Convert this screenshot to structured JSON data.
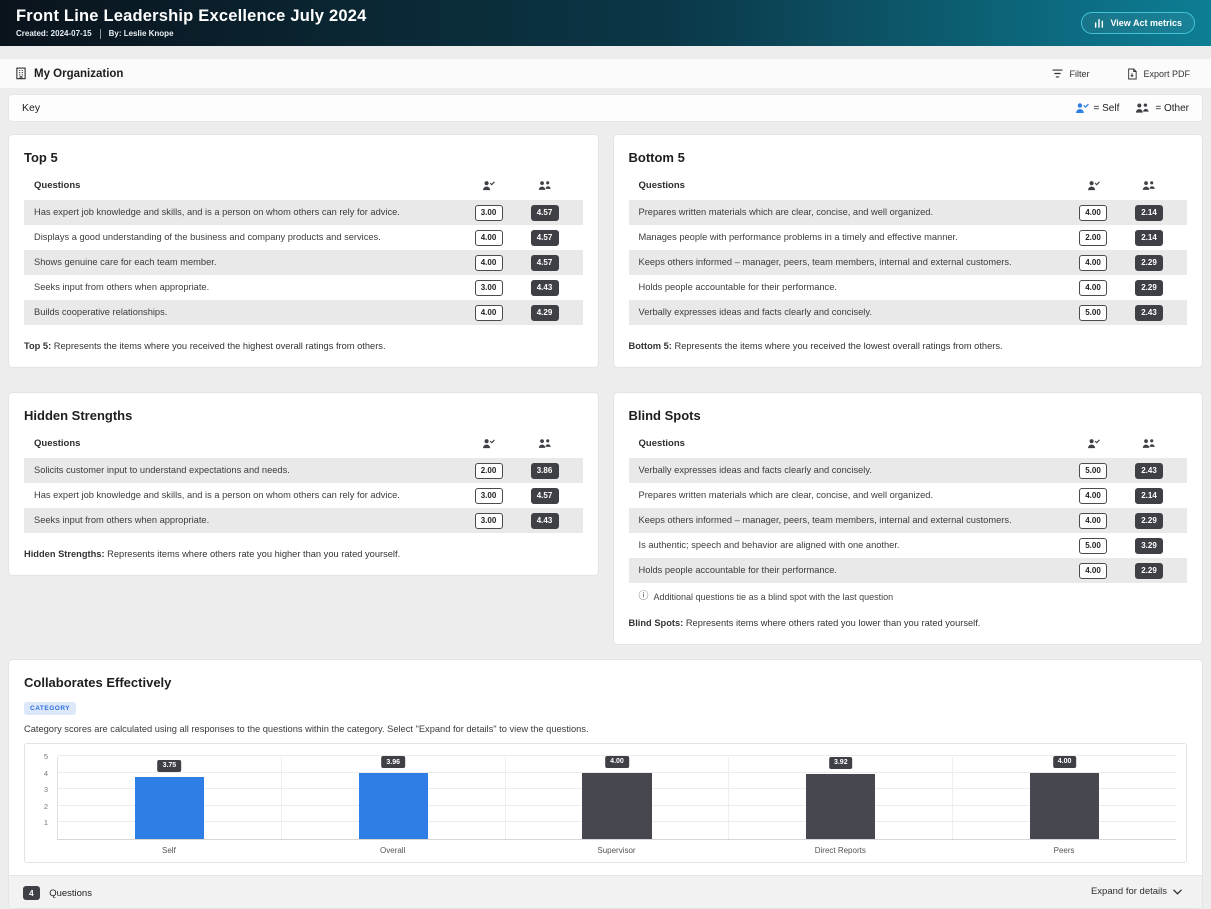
{
  "header": {
    "title": "Front Line Leadership Excellence July 2024",
    "created": "Created: 2024-07-15",
    "by": "By: Leslie Knope",
    "action_button": "View Act metrics"
  },
  "toolbar": {
    "org_label": "My Organization",
    "filter_label": "Filter",
    "export_label": "Export PDF"
  },
  "key": {
    "label": "Key",
    "self_label": "= Self",
    "other_label": "= Other"
  },
  "cards": {
    "top5": {
      "title": "Top 5",
      "questions_header": "Questions",
      "rows": [
        {
          "q": "Has expert job knowledge and skills, and is a person on whom others can rely for advice.",
          "self": "3.00",
          "other": "4.57"
        },
        {
          "q": "Displays a good understanding of the business and company products and services.",
          "self": "4.00",
          "other": "4.57"
        },
        {
          "q": "Shows genuine care for each team member.",
          "self": "4.00",
          "other": "4.57"
        },
        {
          "q": "Seeks input from others when appropriate.",
          "self": "3.00",
          "other": "4.43"
        },
        {
          "q": "Builds cooperative relationships.",
          "self": "4.00",
          "other": "4.29"
        }
      ],
      "footer_bold": "Top 5:",
      "footer_text": " Represents the items where you received the highest overall ratings from others."
    },
    "bottom5": {
      "title": "Bottom 5",
      "questions_header": "Questions",
      "rows": [
        {
          "q": "Prepares written materials which are clear, concise, and well organized.",
          "self": "4.00",
          "other": "2.14"
        },
        {
          "q": "Manages people with performance problems in a timely and effective manner.",
          "self": "2.00",
          "other": "2.14"
        },
        {
          "q": "Keeps others informed – manager, peers, team members, internal and external customers.",
          "self": "4.00",
          "other": "2.29"
        },
        {
          "q": "Holds people accountable for their performance.",
          "self": "4.00",
          "other": "2.29"
        },
        {
          "q": "Verbally expresses ideas and facts clearly and concisely.",
          "self": "5.00",
          "other": "2.43"
        }
      ],
      "footer_bold": "Bottom 5:",
      "footer_text": " Represents the items where you received the lowest overall ratings from others."
    },
    "hidden_strengths": {
      "title": "Hidden Strengths",
      "questions_header": "Questions",
      "rows": [
        {
          "q": "Solicits customer input to understand expectations and needs.",
          "self": "2.00",
          "other": "3.86"
        },
        {
          "q": "Has expert job knowledge and skills, and is a person on whom others can rely for advice.",
          "self": "3.00",
          "other": "4.57"
        },
        {
          "q": "Seeks input from others when appropriate.",
          "self": "3.00",
          "other": "4.43"
        }
      ],
      "footer_bold": "Hidden Strengths:",
      "footer_text": " Represents items where others rate you higher than you rated yourself."
    },
    "blind_spots": {
      "title": "Blind Spots",
      "questions_header": "Questions",
      "rows": [
        {
          "q": "Verbally expresses ideas and facts clearly and concisely.",
          "self": "5.00",
          "other": "2.43"
        },
        {
          "q": "Prepares written materials which are clear, concise, and well organized.",
          "self": "4.00",
          "other": "2.14"
        },
        {
          "q": "Keeps others informed – manager, peers, team members, internal and external customers.",
          "self": "4.00",
          "other": "2.29"
        },
        {
          "q": "Is authentic; speech and behavior are aligned with one another.",
          "self": "5.00",
          "other": "3.29"
        },
        {
          "q": "Holds people accountable for their performance.",
          "self": "4.00",
          "other": "2.29"
        }
      ],
      "note": "Additional questions tie as a blind spot with the last question",
      "footer_bold": "Blind Spots:",
      "footer_text": " Represents items where others rated you lower than you rated yourself."
    }
  },
  "category": {
    "title": "Collaborates Effectively",
    "badge": "CATEGORY",
    "description": "Category scores are calculated using all responses to the questions within the category. Select \"Expand for details\" to view the questions.",
    "count": "4",
    "questions_label": "Questions",
    "expand_label": "Expand for details"
  },
  "chart_data": {
    "type": "bar",
    "title": "Collaborates Effectively",
    "categories": [
      "Self",
      "Overall",
      "Supervisor",
      "Direct Reports",
      "Peers"
    ],
    "values": [
      3.75,
      3.96,
      4.0,
      3.92,
      4.0
    ],
    "colors": [
      "#2e7ee5",
      "#2e7ee5",
      "#47474f",
      "#47474f",
      "#47474f"
    ],
    "ylim": [
      0,
      5
    ],
    "yticks": [
      1,
      2,
      3,
      4,
      5
    ],
    "xlabel": "",
    "ylabel": "",
    "grid": true,
    "legend": false
  }
}
